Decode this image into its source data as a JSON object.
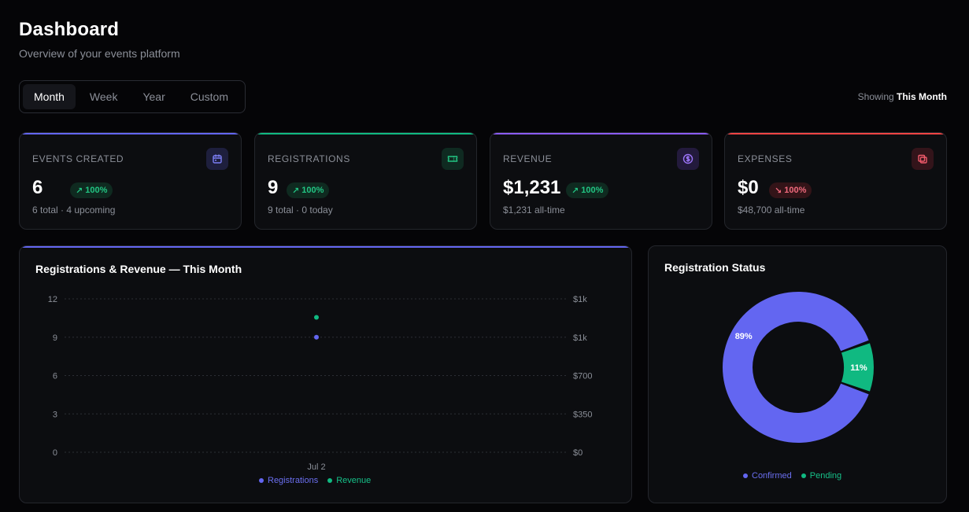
{
  "header": {
    "title": "Dashboard",
    "subtitle": "Overview of your events platform"
  },
  "range": {
    "tabs": [
      {
        "label": "Month",
        "active": true
      },
      {
        "label": "Week",
        "active": false
      },
      {
        "label": "Year",
        "active": false
      },
      {
        "label": "Custom",
        "active": false
      }
    ],
    "showing_prefix": "Showing",
    "showing_value": "This Month"
  },
  "stats": [
    {
      "label": "EVENTS CREATED",
      "value": "6",
      "change": "100%",
      "trend": "up",
      "meta": "6 total · 4 upcoming",
      "icon": "calendar-icon",
      "accent": "#6366f1",
      "icon_bg": "#1e1f3d",
      "icon_color": "#7c7ff5"
    },
    {
      "label": "REGISTRATIONS",
      "value": "9",
      "change": "100%",
      "trend": "up",
      "meta": "9 total · 0 today",
      "icon": "ticket-icon",
      "accent": "#10b981",
      "icon_bg": "#0f2a21",
      "icon_color": "#22c583"
    },
    {
      "label": "REVENUE",
      "value": "$1,231",
      "change": "100%",
      "trend": "up",
      "meta": "$1,231 all-time",
      "icon": "dollar-icon",
      "accent": "#8b5cf6",
      "icon_bg": "#231a3c",
      "icon_color": "#9b74f7"
    },
    {
      "label": "EXPENSES",
      "value": "$0",
      "change": "100%",
      "trend": "down",
      "meta": "$48,700 all-time",
      "icon": "receipt-icon",
      "accent": "#ef4444",
      "icon_bg": "#33141a",
      "icon_color": "#f05a6b"
    }
  ],
  "line_panel": {
    "title": "Registrations & Revenue — This Month"
  },
  "donut_panel": {
    "title": "Registration Status"
  },
  "colors": {
    "registrations": "#6366f1",
    "revenue": "#10b981",
    "confirmed": "#6366f1",
    "pending": "#10b981"
  },
  "chart_data": [
    {
      "type": "line",
      "title": "Registrations & Revenue — This Month",
      "x": [
        "Jul 2"
      ],
      "y_left": {
        "ticks": [
          "0",
          "3",
          "6",
          "9",
          "12"
        ],
        "range": [
          0,
          12
        ]
      },
      "y_right": {
        "ticks": [
          "$0",
          "$350",
          "$700",
          "$1k",
          "$1k"
        ],
        "range": [
          0,
          1400
        ]
      },
      "series": [
        {
          "name": "Registrations",
          "axis": "left",
          "values": [
            9
          ],
          "color": "#6366f1"
        },
        {
          "name": "Revenue",
          "axis": "right",
          "values": [
            1231
          ],
          "color": "#10b981"
        }
      ],
      "grid": true,
      "legend": "bottom"
    },
    {
      "type": "pie",
      "title": "Registration Status",
      "donut": true,
      "slices": [
        {
          "name": "Confirmed",
          "percent": 89,
          "label": "89%",
          "color": "#6366f1"
        },
        {
          "name": "Pending",
          "percent": 11,
          "label": "11%",
          "color": "#10b981"
        }
      ],
      "legend": "bottom"
    }
  ]
}
